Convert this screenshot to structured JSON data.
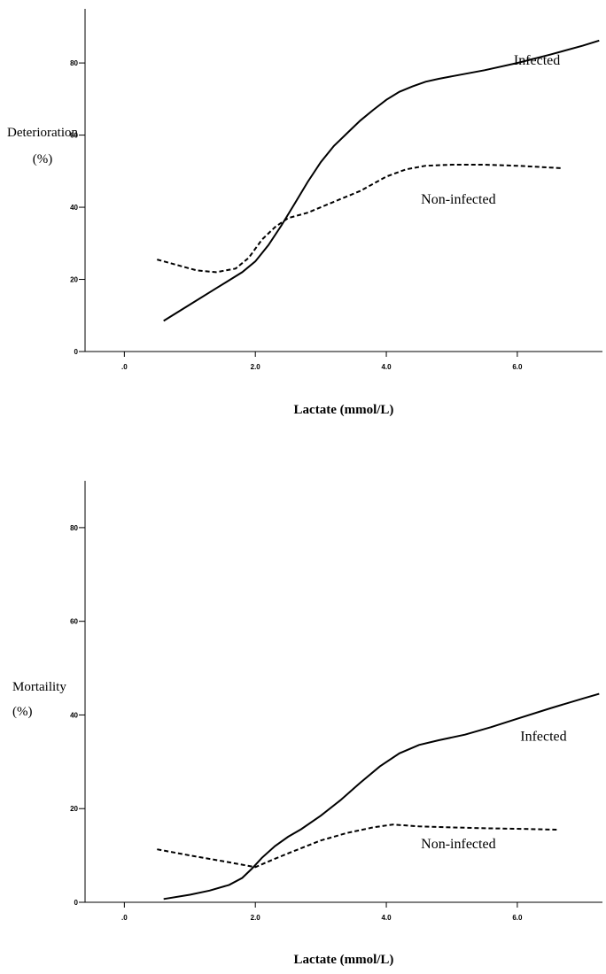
{
  "chart_data": [
    {
      "type": "line",
      "xlabel": "Lactate (mmol/L)",
      "ylabel_lines": [
        "Deterioration",
        "(%)"
      ],
      "xlim": [
        -0.6,
        7.3
      ],
      "ylim": [
        0,
        95
      ],
      "x_ticks": [
        0,
        2,
        4,
        6
      ],
      "x_tick_labels": [
        ".0",
        "2.0",
        "4.0",
        "6.0"
      ],
      "y_ticks": [
        0,
        20,
        40,
        60,
        80
      ],
      "y_tick_labels": [
        "0",
        "20",
        "40",
        "60",
        "80"
      ],
      "grid": false,
      "series": [
        {
          "name": "Infected",
          "style": "solid",
          "x": [
            0.6,
            1.0,
            1.4,
            1.8,
            2.0,
            2.2,
            2.4,
            2.6,
            2.8,
            3.0,
            3.2,
            3.4,
            3.6,
            3.8,
            4.0,
            4.2,
            4.4,
            4.6,
            4.8,
            5.0,
            5.5,
            6.0,
            6.5,
            7.0,
            7.25
          ],
          "y": [
            8.5,
            13,
            17.5,
            22,
            25,
            29.5,
            35,
            41,
            47,
            52.5,
            57,
            60.5,
            64,
            67,
            69.8,
            72,
            73.5,
            74.8,
            75.6,
            76.3,
            78,
            80,
            82.3,
            84.8,
            86.2
          ]
        },
        {
          "name": "Non-infected",
          "style": "dashed",
          "x": [
            0.5,
            0.8,
            1.1,
            1.4,
            1.7,
            1.9,
            2.1,
            2.3,
            2.5,
            2.8,
            3.2,
            3.6,
            4.0,
            4.3,
            4.6,
            5.0,
            5.5,
            6.0,
            6.5,
            6.7
          ],
          "y": [
            25.5,
            24,
            22.5,
            22,
            23,
            26,
            31,
            34.5,
            37,
            38.5,
            41.5,
            44.5,
            48.5,
            50.5,
            51.5,
            51.8,
            51.8,
            51.5,
            51,
            50.8
          ]
        }
      ],
      "annotations": [
        {
          "text": "Infected",
          "x": 6.3,
          "y": 79.5
        },
        {
          "text": "Non-infected",
          "x": 5.1,
          "y": 41
        }
      ]
    },
    {
      "type": "line",
      "xlabel": "Lactate (mmol/L)",
      "ylabel_lines": [
        "Mortaility",
        "(%)"
      ],
      "xlim": [
        -0.6,
        7.3
      ],
      "ylim": [
        0,
        90
      ],
      "x_ticks": [
        0,
        2,
        4,
        6
      ],
      "x_tick_labels": [
        ".0",
        "2.0",
        "4.0",
        "6.0"
      ],
      "y_ticks": [
        0,
        20,
        40,
        60,
        80
      ],
      "y_tick_labels": [
        "0",
        "20",
        "40",
        "60",
        "80"
      ],
      "grid": false,
      "series": [
        {
          "name": "Infected",
          "style": "solid",
          "x": [
            0.6,
            1.0,
            1.3,
            1.6,
            1.8,
            1.95,
            2.1,
            2.3,
            2.5,
            2.7,
            3.0,
            3.3,
            3.6,
            3.9,
            4.2,
            4.5,
            4.8,
            5.2,
            5.6,
            6.0,
            6.5,
            7.0,
            7.25
          ],
          "y": [
            0.7,
            1.6,
            2.5,
            3.7,
            5.2,
            7.2,
            9.5,
            12,
            14,
            15.6,
            18.5,
            21.8,
            25.5,
            29,
            31.8,
            33.6,
            34.6,
            35.8,
            37.4,
            39.2,
            41.4,
            43.5,
            44.5
          ]
        },
        {
          "name": "Non-infected",
          "style": "dashed",
          "x": [
            0.5,
            1.0,
            1.5,
            2.0,
            2.3,
            2.6,
            3.0,
            3.4,
            3.8,
            4.1,
            4.5,
            5.0,
            5.5,
            6.0,
            6.6
          ],
          "y": [
            11.3,
            10,
            8.8,
            7.5,
            9.3,
            11,
            13.2,
            14.8,
            16,
            16.6,
            16.2,
            16,
            15.8,
            15.7,
            15.5
          ]
        }
      ],
      "annotations": [
        {
          "text": "Infected",
          "x": 6.4,
          "y": 34.5
        },
        {
          "text": "Non-infected",
          "x": 5.1,
          "y": 11.5
        }
      ]
    }
  ]
}
